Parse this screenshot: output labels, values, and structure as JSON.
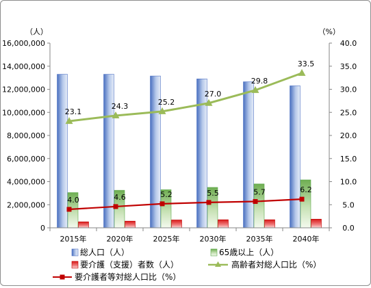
{
  "chart_data": {
    "type": "bar",
    "title": "",
    "categories": [
      "2015年",
      "2020年",
      "2025年",
      "2030年",
      "2035年",
      "2040年"
    ],
    "left_axis": {
      "label": "（人）",
      "range": [
        0,
        16000000
      ],
      "ticks": [
        "0",
        "2,000,000",
        "4,000,000",
        "6,000,000",
        "8,000,000",
        "10,000,000",
        "12,000,000",
        "14,000,000",
        "16,000,000"
      ]
    },
    "right_axis": {
      "label": "（%）",
      "range": [
        0,
        40
      ],
      "ticks": [
        "0.0",
        "5.0",
        "10.0",
        "15.0",
        "20.0",
        "25.0",
        "30.0",
        "35.0",
        "40.0"
      ]
    },
    "grid": false,
    "legend_position": "bottom",
    "series": [
      {
        "name": "総人口（人）",
        "kind": "bar",
        "axis": "left",
        "color": "#4f72c4",
        "values": [
          13300000,
          13300000,
          13150000,
          12900000,
          12650000,
          12300000
        ]
      },
      {
        "name": "65歳以上（人）",
        "kind": "bar",
        "axis": "left",
        "color": "#5aa84a",
        "values": [
          3050000,
          3250000,
          3300000,
          3500000,
          3800000,
          4150000
        ]
      },
      {
        "name": "要介護（支援）者数（人）",
        "kind": "bar",
        "axis": "left",
        "color": "#e02020",
        "values": [
          520000,
          580000,
          680000,
          700000,
          700000,
          750000
        ]
      },
      {
        "name": "高齢者対総人口比（%）",
        "kind": "line",
        "axis": "right",
        "color": "#9bbb59",
        "marker": "triangle",
        "values": [
          23.1,
          24.3,
          25.2,
          27.0,
          29.8,
          33.5
        ],
        "labels": [
          "23.1",
          "24.3",
          "25.2",
          "27.0",
          "29.8",
          "33.5"
        ]
      },
      {
        "name": "要介護者等対総人口比（%）",
        "kind": "line",
        "axis": "right",
        "color": "#c00000",
        "marker": "square",
        "values": [
          4.0,
          4.6,
          5.2,
          5.5,
          5.7,
          6.2
        ],
        "labels": [
          "4.0",
          "4.6",
          "5.2",
          "5.5",
          "5.7",
          "6.2"
        ]
      }
    ]
  }
}
